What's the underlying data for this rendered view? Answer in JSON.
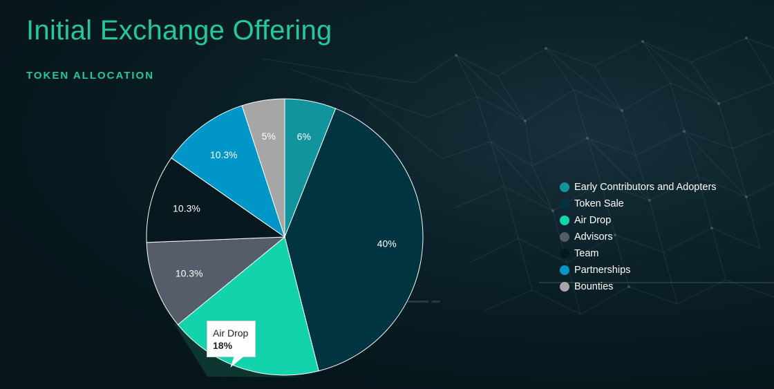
{
  "page": {
    "title": "Initial Exchange Offering",
    "subtitle": "TOKEN ALLOCATION"
  },
  "colors": {
    "accent": "#27c79e",
    "background": "#06161b"
  },
  "chart_data": {
    "type": "pie",
    "title": "",
    "slices": [
      {
        "name": "Early Contributors and Adopters",
        "value": 6,
        "label": "6%",
        "color": "#11949e"
      },
      {
        "name": "Token Sale",
        "value": 40,
        "label": "40%",
        "color": "#003441"
      },
      {
        "name": "Air Drop",
        "value": 18,
        "label": "",
        "color": "#13d3ad"
      },
      {
        "name": "Advisors",
        "value": 10.3,
        "label": "10.3%",
        "color": "#555d6b"
      },
      {
        "name": "Team",
        "value": 10.3,
        "label": "10.3%",
        "color": "#07181e"
      },
      {
        "name": "Partnerships",
        "value": 10.3,
        "label": "10.3%",
        "color": "#0096c8"
      },
      {
        "name": "Bounties",
        "value": 5,
        "label": "5%",
        "color": "#a6a6a6"
      }
    ],
    "legend_position": "right"
  },
  "tooltip": {
    "label": "Air Drop",
    "value": "18%"
  }
}
